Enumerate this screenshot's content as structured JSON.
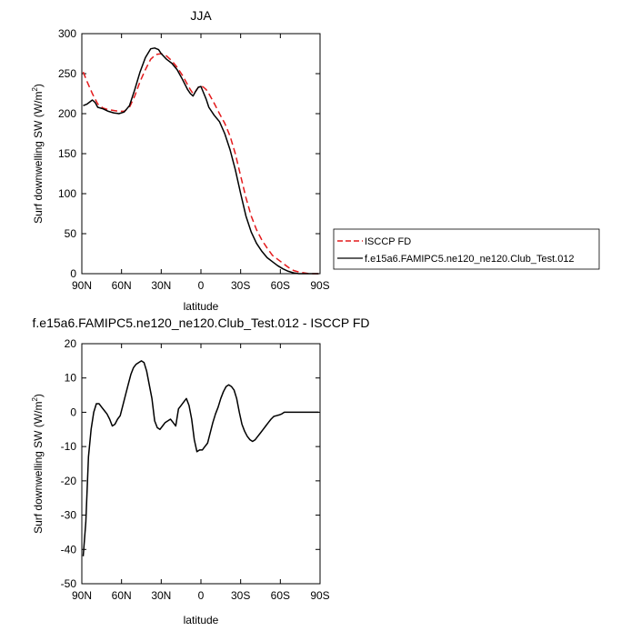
{
  "chart_data": [
    {
      "type": "line",
      "title": "JJA",
      "xlabel": "latitude",
      "ylabel": "Surf downwelling SW (W/m",
      "ylabel_sup": "2",
      "ylabel_close": ")",
      "xlim": [
        90,
        -90
      ],
      "ylim": [
        0,
        300
      ],
      "xticks": [
        {
          "v": 90,
          "label": "90N"
        },
        {
          "v": 60,
          "label": "60N"
        },
        {
          "v": 30,
          "label": "30N"
        },
        {
          "v": 0,
          "label": "0"
        },
        {
          "v": -30,
          "label": "30S"
        },
        {
          "v": -60,
          "label": "60S"
        },
        {
          "v": -90,
          "label": "90S"
        }
      ],
      "yticks": [
        0,
        50,
        100,
        150,
        200,
        250,
        300
      ],
      "legend": "outside-right",
      "series": [
        {
          "name": "ISCCP FD",
          "color": "#e41a1c",
          "dash": "dashed",
          "x": [
            89,
            86,
            82,
            78,
            74,
            70,
            66,
            62,
            58,
            54,
            50,
            46,
            42,
            38,
            34,
            30,
            26,
            22,
            18,
            14,
            10,
            8,
            6,
            4,
            2,
            0,
            -2,
            -4,
            -6,
            -10,
            -14,
            -18,
            -22,
            -26,
            -30,
            -34,
            -38,
            -42,
            -46,
            -50,
            -54,
            -58,
            -62,
            -66,
            -70,
            -74,
            -78,
            -82,
            -86,
            -89
          ],
          "y": [
            252,
            240,
            225,
            212,
            207,
            205,
            204,
            203,
            203,
            208,
            222,
            240,
            255,
            268,
            274,
            275,
            272,
            266,
            258,
            248,
            236,
            230,
            225,
            228,
            233,
            235,
            233,
            230,
            225,
            213,
            200,
            188,
            172,
            150,
            122,
            95,
            72,
            55,
            42,
            32,
            23,
            18,
            13,
            8,
            4,
            2,
            1,
            0,
            0,
            0
          ]
        },
        {
          "name": "f.e15a6.FAMIPC5.ne120_ne120.Club_Test.012",
          "color": "#000000",
          "dash": "solid",
          "x": [
            89,
            86,
            82,
            80,
            78,
            74,
            70,
            66,
            62,
            58,
            54,
            50,
            46,
            42,
            38,
            35,
            32,
            30,
            26,
            22,
            18,
            14,
            10,
            8,
            6,
            4,
            2,
            0,
            -2,
            -4,
            -6,
            -10,
            -14,
            -18,
            -22,
            -26,
            -30,
            -34,
            -38,
            -42,
            -46,
            -50,
            -54,
            -58,
            -62,
            -66,
            -70,
            -74,
            -78,
            -82,
            -86,
            -89
          ],
          "y": [
            210,
            212,
            217,
            214,
            208,
            206,
            203,
            201,
            200,
            202,
            210,
            230,
            252,
            270,
            281,
            282,
            280,
            275,
            268,
            263,
            255,
            243,
            230,
            225,
            222,
            228,
            233,
            234,
            226,
            218,
            208,
            198,
            190,
            175,
            155,
            130,
            100,
            72,
            52,
            38,
            28,
            20,
            15,
            10,
            6,
            3,
            1,
            0,
            0,
            0,
            0,
            0
          ]
        }
      ]
    },
    {
      "type": "line",
      "title": "f.e15a6.FAMIPC5.ne120_ne120.Club_Test.012 - ISCCP FD",
      "xlabel": "latitude",
      "ylabel": "Surf downwelling SW (W/m",
      "ylabel_sup": "2",
      "ylabel_close": ")",
      "xlim": [
        90,
        -90
      ],
      "ylim": [
        -50,
        20
      ],
      "xticks": [
        {
          "v": 90,
          "label": "90N"
        },
        {
          "v": 60,
          "label": "60N"
        },
        {
          "v": 30,
          "label": "30N"
        },
        {
          "v": 0,
          "label": "0"
        },
        {
          "v": -30,
          "label": "30S"
        },
        {
          "v": -60,
          "label": "60S"
        },
        {
          "v": -90,
          "label": "90S"
        }
      ],
      "yticks": [
        -50,
        -40,
        -30,
        -20,
        -10,
        0,
        10,
        20
      ],
      "series": [
        {
          "color": "#000000",
          "dash": "solid",
          "x": [
            89,
            87,
            85,
            83,
            81,
            79,
            77,
            75,
            73,
            71,
            69,
            67,
            65,
            63,
            61,
            59,
            57,
            55,
            53,
            51,
            49,
            47,
            45,
            43,
            41,
            39,
            37,
            35,
            33,
            31,
            29,
            27,
            25,
            23,
            21,
            19,
            17,
            15,
            13,
            11,
            9,
            7,
            5,
            3,
            1,
            -1,
            -3,
            -5,
            -7,
            -9,
            -11,
            -13,
            -15,
            -17,
            -19,
            -21,
            -23,
            -25,
            -27,
            -29,
            -31,
            -33,
            -35,
            -37,
            -39,
            -41,
            -43,
            -45,
            -47,
            -49,
            -51,
            -53,
            -55,
            -57,
            -59,
            -61,
            -63,
            -65,
            -67,
            -69,
            -71,
            -73,
            -75,
            -77,
            -79,
            -81,
            -83,
            -85,
            -87,
            -89
          ],
          "y": [
            -42,
            -32,
            -13,
            -5,
            0,
            2.5,
            2.5,
            1.5,
            0.5,
            -0.5,
            -2,
            -4,
            -3.5,
            -2,
            -1,
            2,
            5,
            8,
            11,
            13,
            14,
            14.5,
            15,
            14.5,
            12,
            8,
            4,
            -2.5,
            -4.5,
            -5,
            -4,
            -3,
            -2.5,
            -2,
            -3,
            -4,
            1,
            2,
            3,
            4,
            2,
            -2,
            -8,
            -11.5,
            -11,
            -11,
            -10,
            -9,
            -6,
            -3,
            -0.5,
            1.5,
            4,
            6,
            7.5,
            8,
            7.5,
            6.5,
            4,
            0,
            -3.5,
            -5.5,
            -7,
            -8,
            -8.5,
            -8,
            -7,
            -6,
            -5,
            -4,
            -3,
            -2,
            -1.2,
            -1,
            -0.8,
            -0.5,
            0,
            0,
            0,
            0,
            0,
            0,
            0,
            0,
            0,
            0,
            0,
            0,
            0,
            0
          ]
        }
      ]
    }
  ]
}
